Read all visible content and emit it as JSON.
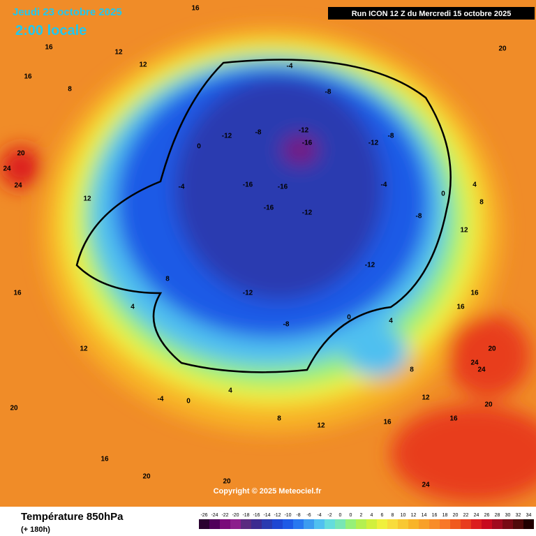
{
  "header": {
    "date": "Jeudi 23 octobre 2025",
    "time": "2:00 locale",
    "run": "Run ICON 12 Z du Mercredi 15 octobre 2025",
    "copyright": "Copyright © 2025 Meteociel.fr"
  },
  "footer": {
    "title": "Température 850hPa",
    "lead": "(+ 180h)"
  },
  "colorbar": {
    "labels": [
      "-26",
      "-24",
      "-22",
      "-20",
      "-18",
      "-16",
      "-14",
      "-12",
      "-10",
      "-8",
      "-6",
      "-4",
      "-2",
      "0",
      "0",
      "2",
      "4",
      "6",
      "8",
      "10",
      "12",
      "14",
      "16",
      "18",
      "20",
      "22",
      "24",
      "26",
      "28",
      "30",
      "32",
      "34"
    ],
    "colors": [
      "#2a0030",
      "#50005a",
      "#7a0a7a",
      "#8c1e8c",
      "#5a2a80",
      "#3c2a90",
      "#2a3ab0",
      "#1e46d2",
      "#1e5ae6",
      "#2878f0",
      "#3c9cf0",
      "#50c0f0",
      "#64dcdc",
      "#78e6b4",
      "#96f078",
      "#b4f050",
      "#d2f03c",
      "#f0f03c",
      "#f8dc3c",
      "#f8c832",
      "#f8b428",
      "#f8a028",
      "#f88c28",
      "#f87828",
      "#f05a1e",
      "#e83c1e",
      "#dc1e1e",
      "#c80a1e",
      "#a00a1e",
      "#780a14",
      "#500a0a",
      "#200000"
    ]
  },
  "map_labels": [
    "16",
    "16",
    "12",
    "8",
    "12",
    "16",
    "20",
    "24",
    "24",
    "12",
    "-4",
    "-8",
    "-12",
    "-16",
    "-16",
    "-12",
    "-8",
    "-4",
    "0",
    "4",
    "8",
    "12",
    "16",
    "20",
    "24",
    "-12",
    "-16",
    "-12",
    "-8",
    "-4",
    "0",
    "4",
    "8",
    "12",
    "16",
    "20",
    "20",
    "24",
    "16",
    "12",
    "8",
    "4",
    "0",
    "-4",
    "-8",
    "-12",
    "-16",
    "-12",
    "-8",
    "0",
    "4",
    "8",
    "12",
    "16",
    "20",
    "16",
    "20",
    "24",
    "20",
    "16"
  ]
}
